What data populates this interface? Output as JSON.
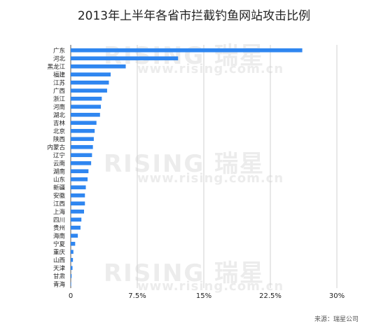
{
  "chart_data": {
    "type": "bar",
    "orientation": "horizontal",
    "title": "2013年上半年各省市拦截钓鱼网站攻击比例",
    "xlabel": "",
    "ylabel": "",
    "xlim": [
      0,
      30
    ],
    "x_ticks": [
      "0",
      "7.5%",
      "15%",
      "22.5%",
      "30%"
    ],
    "x_tick_values": [
      0,
      7.5,
      15,
      22.5,
      30
    ],
    "grid": true,
    "legend": "none",
    "bar_color": "#2f86f0",
    "categories": [
      "广东",
      "河北",
      "黑龙江",
      "福建",
      "江苏",
      "广西",
      "浙江",
      "河南",
      "湖北",
      "吉林",
      "北京",
      "陕西",
      "内蒙古",
      "辽宁",
      "云南",
      "湖南",
      "山东",
      "新疆",
      "安徽",
      "江西",
      "上海",
      "四川",
      "贵州",
      "海南",
      "宁夏",
      "重庆",
      "山西",
      "天津",
      "甘肃",
      "青海"
    ],
    "values": [
      26.1,
      12.1,
      6.2,
      4.5,
      4.3,
      4.1,
      3.5,
      3.4,
      3.3,
      2.9,
      2.7,
      2.6,
      2.5,
      2.4,
      2.3,
      2.0,
      1.9,
      1.7,
      1.6,
      1.6,
      1.5,
      1.2,
      1.1,
      0.8,
      0.5,
      0.3,
      0.25,
      0.2,
      0.1,
      0.05
    ]
  },
  "source_note": "来源：瑞星公司",
  "watermark": {
    "logo": "RISING 瑞星",
    "url": "www.rising.com.cn"
  }
}
